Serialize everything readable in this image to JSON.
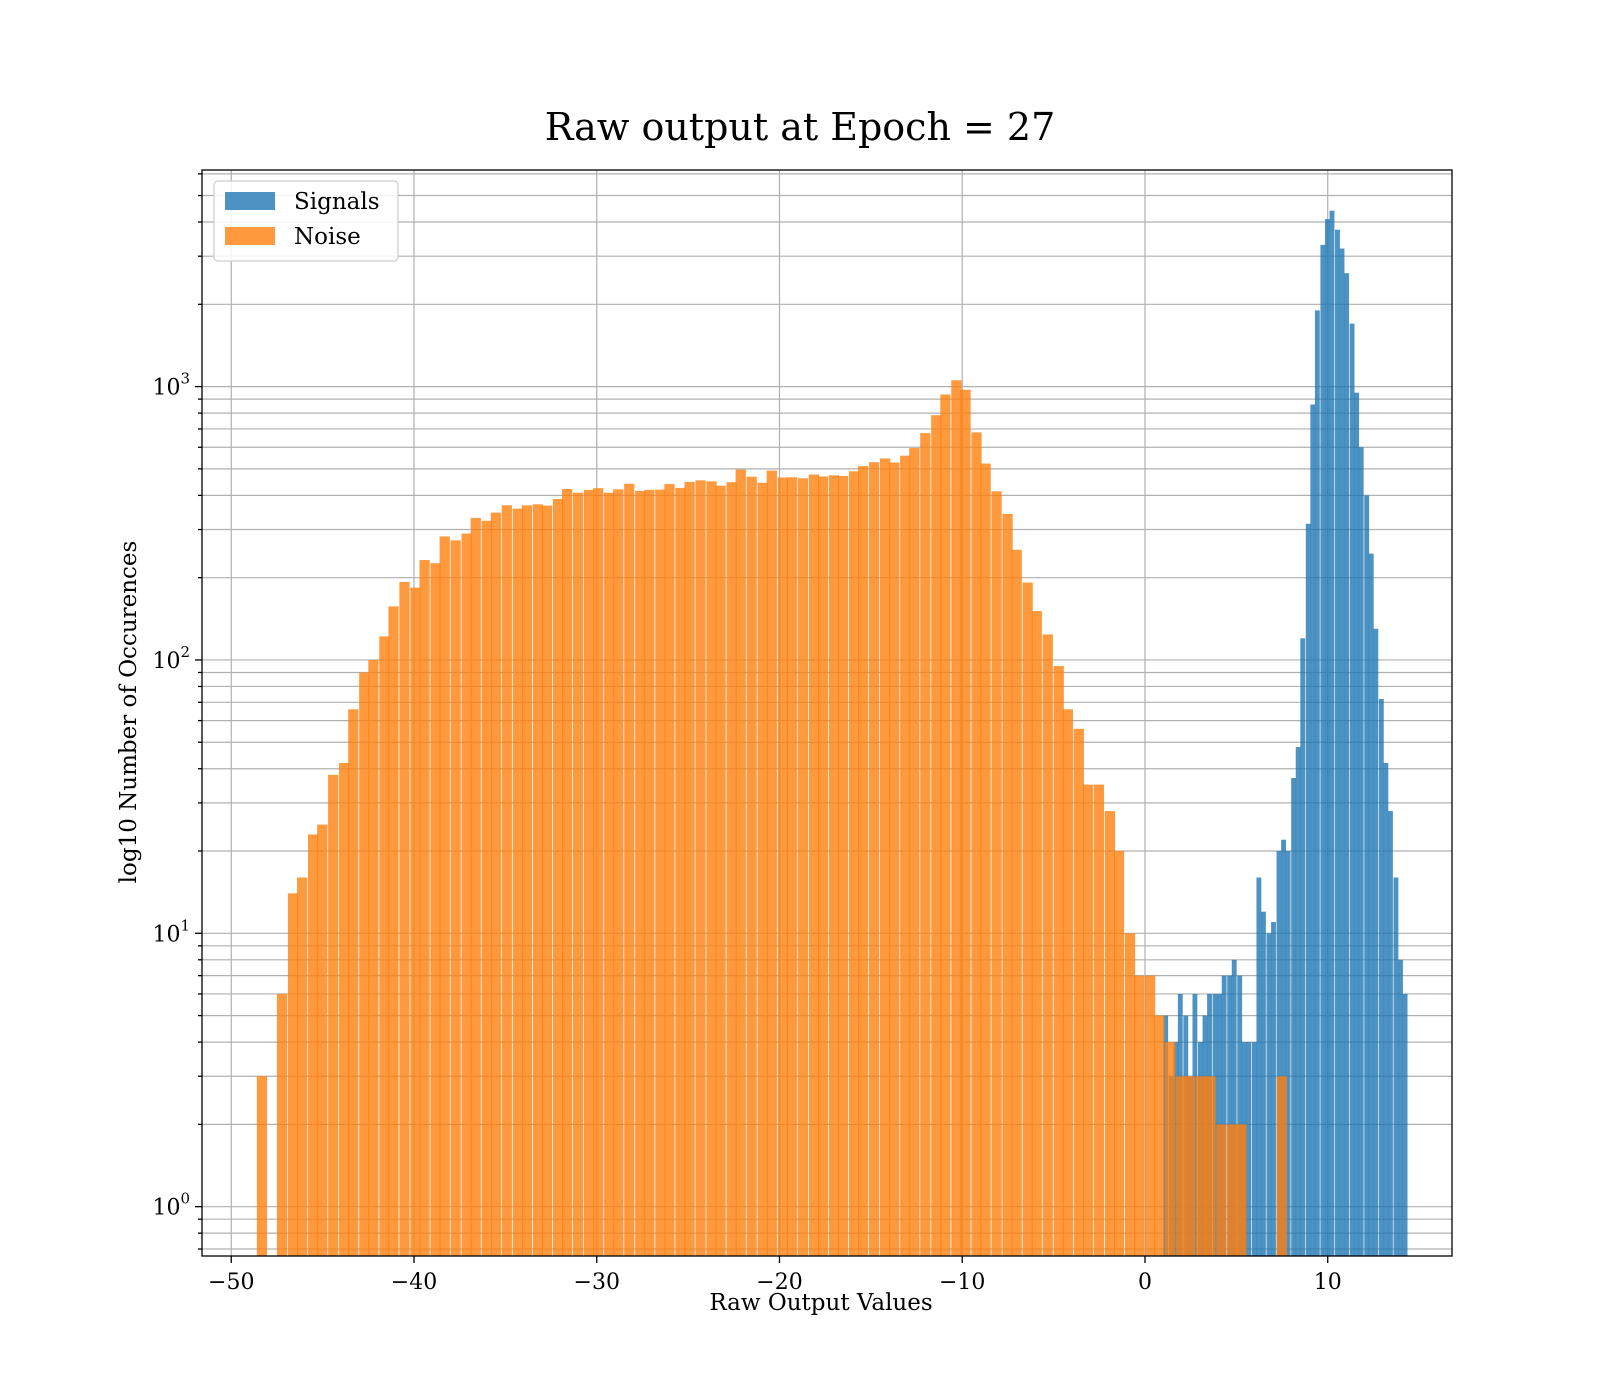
{
  "chart_data": {
    "type": "histogram",
    "title": "Raw output at Epoch = 27",
    "xlabel": "Raw Output Values",
    "ylabel": "log10 Number of Occurences",
    "yscale": "log",
    "grid": "major and minor",
    "xlim": [
      -51.6,
      16.8
    ],
    "ylim": [
      0.66,
      6200
    ],
    "xticks": [
      -50,
      -40,
      -30,
      -20,
      -10,
      0,
      10
    ],
    "xtick_labels": [
      "−50",
      "−40",
      "−30",
      "−20",
      "−10",
      "0",
      "10"
    ],
    "yticks": [
      {
        "value": 1,
        "base": "10",
        "exp": "0"
      },
      {
        "value": 10,
        "base": "10",
        "exp": "1"
      },
      {
        "value": 100,
        "base": "10",
        "exp": "2"
      },
      {
        "value": 1000,
        "base": "10",
        "exp": "3"
      }
    ],
    "legend": {
      "position": "top-left"
    },
    "series": [
      {
        "name": "Noise",
        "color": "#ff7f0e",
        "opacity": 0.8,
        "bin_width": 0.56,
        "bins": [
          [
            -48.6,
            3
          ],
          [
            -48.0,
            0
          ],
          [
            -47.5,
            6
          ],
          [
            -46.9,
            14
          ],
          [
            -46.4,
            16
          ],
          [
            -45.8,
            23
          ],
          [
            -45.3,
            25
          ],
          [
            -44.7,
            38
          ],
          [
            -44.1,
            42
          ],
          [
            -43.6,
            66
          ],
          [
            -43.0,
            90
          ],
          [
            -42.5,
            100
          ],
          [
            -41.9,
            122
          ],
          [
            -41.4,
            157
          ],
          [
            -40.8,
            193
          ],
          [
            -40.2,
            184
          ],
          [
            -39.7,
            232
          ],
          [
            -39.1,
            226
          ],
          [
            -38.6,
            283
          ],
          [
            -38.0,
            274
          ],
          [
            -37.4,
            290
          ],
          [
            -36.9,
            331
          ],
          [
            -36.3,
            323
          ],
          [
            -35.8,
            346
          ],
          [
            -35.2,
            368
          ],
          [
            -34.6,
            358
          ],
          [
            -34.1,
            368
          ],
          [
            -33.5,
            371
          ],
          [
            -33.0,
            367
          ],
          [
            -32.4,
            388
          ],
          [
            -31.9,
            422
          ],
          [
            -31.3,
            409
          ],
          [
            -30.7,
            419
          ],
          [
            -30.2,
            425
          ],
          [
            -29.6,
            409
          ],
          [
            -29.1,
            421
          ],
          [
            -28.5,
            441
          ],
          [
            -27.9,
            415
          ],
          [
            -27.4,
            419
          ],
          [
            -26.8,
            420
          ],
          [
            -26.3,
            440
          ],
          [
            -25.7,
            426
          ],
          [
            -25.2,
            448
          ],
          [
            -24.6,
            454
          ],
          [
            -24.0,
            450
          ],
          [
            -23.5,
            434
          ],
          [
            -22.9,
            447
          ],
          [
            -22.4,
            497
          ],
          [
            -21.8,
            468
          ],
          [
            -21.2,
            445
          ],
          [
            -20.7,
            493
          ],
          [
            -20.1,
            465
          ],
          [
            -19.6,
            466
          ],
          [
            -19.0,
            462
          ],
          [
            -18.4,
            477
          ],
          [
            -17.9,
            469
          ],
          [
            -17.3,
            474
          ],
          [
            -16.8,
            471
          ],
          [
            -16.2,
            490
          ],
          [
            -15.7,
            512
          ],
          [
            -15.1,
            529
          ],
          [
            -14.5,
            546
          ],
          [
            -14.0,
            528
          ],
          [
            -13.4,
            559
          ],
          [
            -12.9,
            596
          ],
          [
            -12.3,
            676
          ],
          [
            -11.7,
            786
          ],
          [
            -11.2,
            936
          ],
          [
            -10.6,
            1055
          ],
          [
            -10.1,
            974
          ],
          [
            -9.5,
            680
          ],
          [
            -9.0,
            523
          ],
          [
            -8.4,
            414
          ],
          [
            -7.8,
            342
          ],
          [
            -7.3,
            253
          ],
          [
            -6.7,
            192
          ],
          [
            -6.2,
            151
          ],
          [
            -5.6,
            124
          ],
          [
            -5.0,
            95
          ],
          [
            -4.5,
            66
          ],
          [
            -3.9,
            56
          ],
          [
            -3.4,
            35
          ],
          [
            -2.8,
            35
          ],
          [
            -2.2,
            28
          ],
          [
            -1.7,
            20
          ],
          [
            -1.1,
            10
          ],
          [
            -0.6,
            7
          ],
          [
            0.0,
            7
          ],
          [
            0.5,
            5
          ],
          [
            1.1,
            4
          ],
          [
            1.7,
            3
          ],
          [
            2.2,
            3
          ],
          [
            2.8,
            3
          ],
          [
            3.3,
            3
          ],
          [
            3.9,
            2
          ],
          [
            4.5,
            2
          ],
          [
            5.0,
            2
          ],
          [
            5.6,
            0
          ],
          [
            6.1,
            0
          ],
          [
            6.7,
            0
          ],
          [
            7.2,
            3
          ]
        ]
      },
      {
        "name": "Signals",
        "color": "#1f77b4",
        "opacity": 0.8,
        "bin_width": 0.265,
        "bins": [
          [
            1.0,
            5
          ],
          [
            1.3,
            3
          ],
          [
            1.55,
            4
          ],
          [
            1.8,
            6
          ],
          [
            2.1,
            5
          ],
          [
            2.35,
            3
          ],
          [
            2.6,
            6
          ],
          [
            2.9,
            4
          ],
          [
            3.15,
            5
          ],
          [
            3.4,
            6
          ],
          [
            3.7,
            6
          ],
          [
            3.95,
            6
          ],
          [
            4.2,
            7
          ],
          [
            4.5,
            7
          ],
          [
            4.75,
            8
          ],
          [
            5.05,
            7
          ],
          [
            5.3,
            4
          ],
          [
            5.55,
            4
          ],
          [
            5.85,
            4
          ],
          [
            6.1,
            16
          ],
          [
            6.35,
            12
          ],
          [
            6.65,
            10
          ],
          [
            6.9,
            11
          ],
          [
            7.2,
            20
          ],
          [
            7.45,
            22
          ],
          [
            7.7,
            20
          ],
          [
            8.0,
            37
          ],
          [
            8.25,
            48
          ],
          [
            8.5,
            120
          ],
          [
            8.8,
            315
          ],
          [
            9.05,
            860
          ],
          [
            9.3,
            1900
          ],
          [
            9.6,
            3300
          ],
          [
            9.85,
            4100
          ],
          [
            10.1,
            4400
          ],
          [
            10.4,
            3750
          ],
          [
            10.65,
            3200
          ],
          [
            10.9,
            2600
          ],
          [
            11.2,
            1700
          ],
          [
            11.45,
            950
          ],
          [
            11.7,
            600
          ],
          [
            12.0,
            400
          ],
          [
            12.25,
            245
          ],
          [
            12.5,
            130
          ],
          [
            12.8,
            72
          ],
          [
            13.05,
            42
          ],
          [
            13.3,
            28
          ],
          [
            13.6,
            16
          ],
          [
            13.85,
            8
          ],
          [
            14.1,
            6
          ]
        ]
      }
    ]
  }
}
